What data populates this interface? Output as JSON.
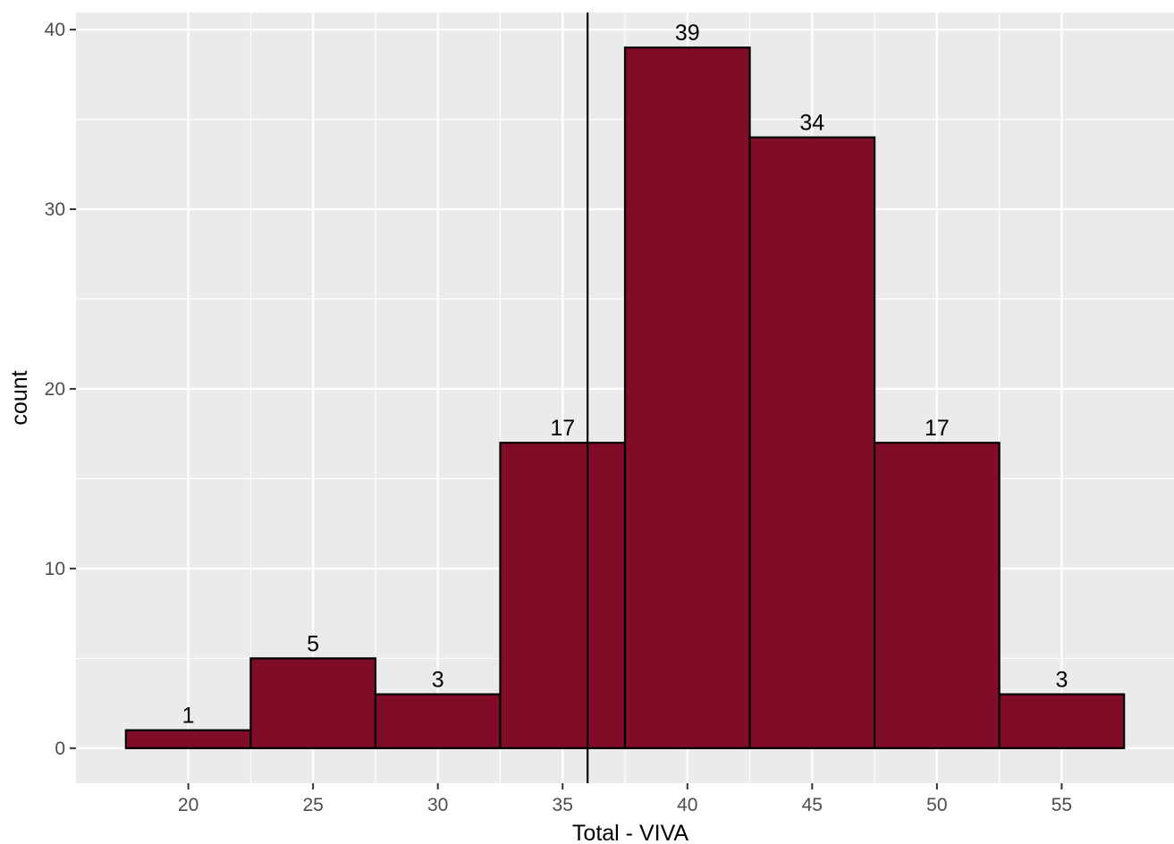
{
  "chart_data": {
    "type": "bar",
    "subtype": "histogram",
    "bin_width": 5,
    "bin_centers": [
      20,
      25,
      30,
      35,
      40,
      45,
      50,
      55
    ],
    "values": [
      1,
      5,
      3,
      17,
      39,
      34,
      17,
      3
    ],
    "data_labels": [
      "1",
      "5",
      "3",
      "17",
      "39",
      "34",
      "17",
      "3"
    ],
    "xlabel": "Total - VIVA",
    "ylabel": "count",
    "xlim": [
      15.5,
      59.5
    ],
    "ylim": [
      -1.95,
      40.95
    ],
    "x_ticks": [
      20,
      25,
      30,
      35,
      40,
      45,
      50,
      55
    ],
    "x_tick_labels": [
      "20",
      "25",
      "30",
      "35",
      "40",
      "45",
      "50",
      "55"
    ],
    "y_ticks": [
      0,
      10,
      20,
      30,
      40
    ],
    "y_tick_labels": [
      "0",
      "10",
      "20",
      "30",
      "40"
    ],
    "reference_line_x": 36,
    "grid": true,
    "colors": {
      "bar_fill": "#800C28",
      "bar_outline": "#000000",
      "panel_background": "#EBEBEB",
      "grid": "#FFFFFF",
      "reference_line": "#000000"
    }
  }
}
